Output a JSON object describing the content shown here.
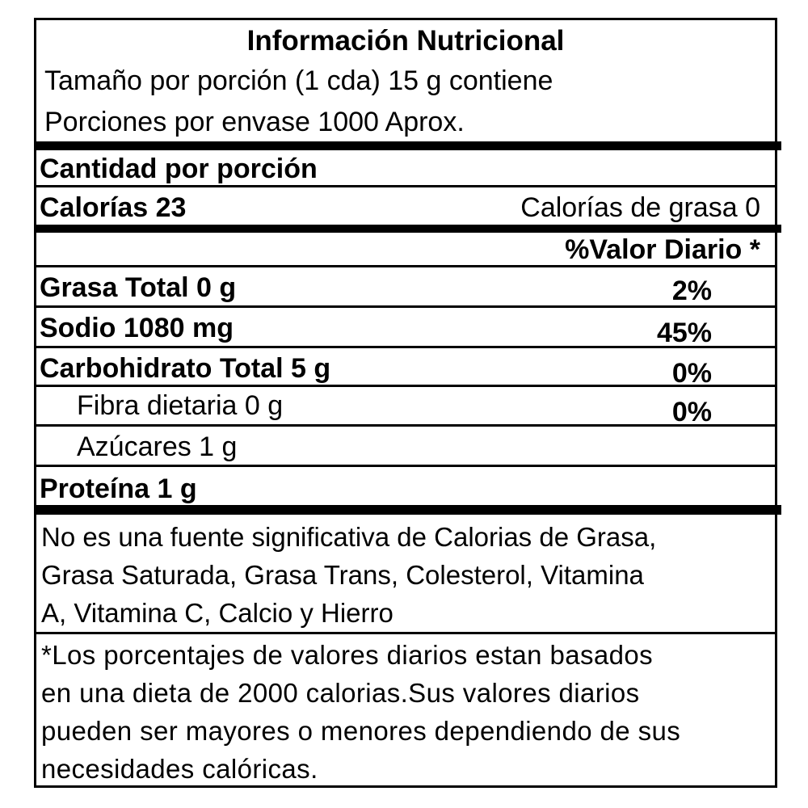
{
  "header": {
    "title": "Información Nutricional",
    "serving_size": "Tamaño por porción (1 cda) 15 g contiene",
    "servings_per_container": "Porciones por envase 1000 Aprox."
  },
  "amount_per_serving": "Cantidad por porción",
  "calories": {
    "label": "Calorías  23",
    "fat_calories": "Calorías de grasa 0"
  },
  "daily_value_header": "%Valor Diario *",
  "nutrients": [
    {
      "label": "Grasa Total 0 g",
      "dv": "2%"
    },
    {
      "label": "Sodio 1080 mg",
      "dv": "45%"
    },
    {
      "label": "Carbohidrato Total 5 g",
      "dv": "0%"
    },
    {
      "label": "Fibra dietaria 0 g",
      "dv": "0%"
    },
    {
      "label": "Azúcares 1 g",
      "dv": ""
    },
    {
      "label": "Proteína 1 g",
      "dv": ""
    }
  ],
  "note": "No es una fuente significativa de Calorias de Grasa,\nGrasa Saturada, Grasa Trans, Colesterol, Vitamina\nA, Vitamina C, Calcio y Hierro",
  "footnote": "*Los porcentajes de valores diarios estan basados\nen una dieta de 2000 calorias.Sus valores diarios\npueden ser mayores o menores dependiendo de sus\nnecesidades calóricas."
}
